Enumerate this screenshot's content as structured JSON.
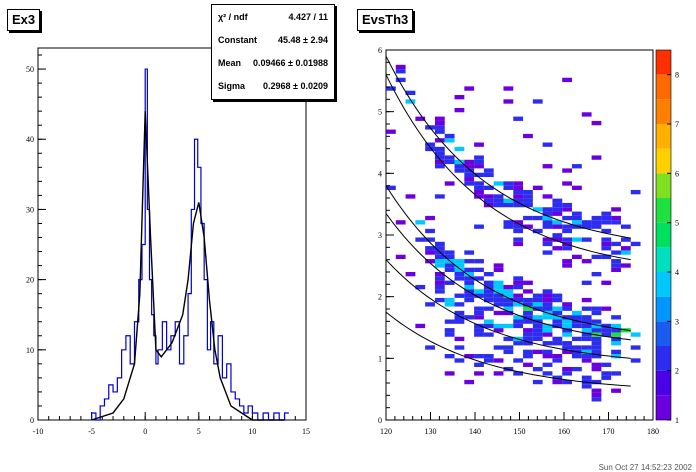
{
  "chart_data": [
    {
      "type": "histogram",
      "title": "Ex3",
      "xlim": [
        -10,
        15
      ],
      "ylim": [
        0,
        53
      ],
      "xticks": [
        -10,
        -5,
        0,
        5,
        10,
        15
      ],
      "yticks": [
        0,
        10,
        20,
        30,
        40,
        50
      ],
      "series": [
        {
          "style": "blue-step",
          "x": [
            -5,
            -4.6,
            -4.2,
            -3.8,
            -3.4,
            -3,
            -2.6,
            -2.2,
            -1.8,
            -1.4,
            -1,
            -0.6,
            -0.3,
            0,
            0.2,
            0.4,
            0.6,
            0.8,
            1,
            1.2,
            1.6,
            2,
            2.4,
            2.8,
            3.2,
            3.6,
            4,
            4.3,
            4.6,
            4.9,
            5.2,
            5.5,
            5.8,
            6.1,
            6.4,
            6.8,
            7.2,
            7.6,
            8,
            8.4,
            8.8,
            9.2,
            9.6,
            10,
            10.5,
            11,
            11.5,
            12,
            12.5,
            13
          ],
          "y": [
            1,
            0,
            2,
            3,
            5,
            4,
            6,
            10,
            12,
            8,
            14,
            20,
            25,
            50,
            30,
            20,
            15,
            12,
            8,
            10,
            14,
            10,
            12,
            14,
            8,
            12,
            18,
            30,
            40,
            36,
            28,
            20,
            10,
            14,
            8,
            12,
            6,
            8,
            4,
            3,
            2,
            1,
            2,
            1,
            0,
            1,
            0,
            1,
            0,
            1
          ]
        },
        {
          "style": "black-fit",
          "x": [
            -5,
            -3,
            -2,
            -1,
            -0.5,
            0,
            0.5,
            1,
            1.5,
            2,
            2.5,
            3,
            3.5,
            4,
            4.5,
            5,
            5.5,
            6,
            6.5,
            7,
            8,
            9,
            10,
            13
          ],
          "y": [
            0,
            1,
            3,
            8,
            18,
            44,
            26,
            10,
            9,
            10,
            11,
            13,
            15,
            20,
            28,
            31,
            26,
            17,
            10,
            6,
            2,
            1,
            0,
            0
          ]
        }
      ],
      "stats": {
        "chi2_label": "χ² / ndf",
        "chi2_value": "4.427 / 11",
        "constant_label": "Constant",
        "constant_value": "45.48 ± 2.94",
        "mean_label": "Mean",
        "mean_value": "0.09466 ± 0.01988",
        "sigma_label": "Sigma",
        "sigma_value": "0.2968 ± 0.0209"
      }
    },
    {
      "type": "heatmap",
      "title": "EvsTh3",
      "xlim": [
        120,
        180
      ],
      "ylim": [
        0,
        6
      ],
      "xticks": [
        120,
        130,
        140,
        150,
        160,
        170,
        180
      ],
      "yticks": [
        0,
        1,
        2,
        3,
        4,
        5,
        6
      ],
      "zscale": [
        1,
        2,
        3,
        4,
        5,
        6,
        7,
        8
      ],
      "colors": {
        "low": "#6a00e0",
        "blue": "#2d2df0",
        "cyan": "#00c8ff",
        "green": "#20e040",
        "yellow": "#ffd000",
        "orange": "#ff6a00",
        "red": "#ff0000"
      },
      "kinematic_curves_E_at_120": [
        5.9,
        5.6,
        3.8,
        3.35,
        2.6,
        1.75
      ],
      "kinematic_curves_E_at_175": [
        2.95,
        2.6,
        1.45,
        1.3,
        1.0,
        0.55
      ]
    }
  ],
  "footer": "Sun Oct 27 14:52:23 2002"
}
